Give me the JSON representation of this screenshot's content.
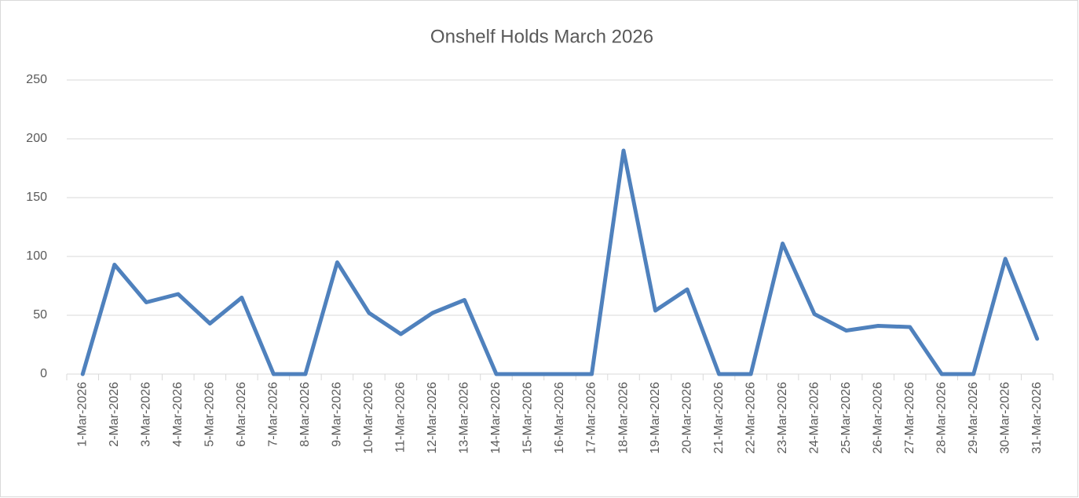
{
  "chart_data": {
    "type": "line",
    "title": "Onshelf Holds March 2026",
    "categories": [
      "1-Mar-2026",
      "2-Mar-2026",
      "3-Mar-2026",
      "4-Mar-2026",
      "5-Mar-2026",
      "6-Mar-2026",
      "7-Mar-2026",
      "8-Mar-2026",
      "9-Mar-2026",
      "10-Mar-2026",
      "11-Mar-2026",
      "12-Mar-2026",
      "13-Mar-2026",
      "14-Mar-2026",
      "15-Mar-2026",
      "16-Mar-2026",
      "17-Mar-2026",
      "18-Mar-2026",
      "19-Mar-2026",
      "20-Mar-2026",
      "21-Mar-2026",
      "22-Mar-2026",
      "23-Mar-2026",
      "24-Mar-2026",
      "25-Mar-2026",
      "26-Mar-2026",
      "27-Mar-2026",
      "28-Mar-2026",
      "29-Mar-2026",
      "30-Mar-2026",
      "31-Mar-2026"
    ],
    "values": [
      0,
      93,
      61,
      68,
      43,
      65,
      0,
      0,
      95,
      52,
      34,
      52,
      63,
      0,
      0,
      0,
      0,
      190,
      54,
      72,
      0,
      0,
      111,
      51,
      37,
      41,
      40,
      0,
      0,
      98,
      30
    ],
    "color": "#4f81bd",
    "ylim": [
      0,
      250
    ],
    "yticks": [
      0,
      50,
      100,
      150,
      200,
      250
    ],
    "grid": true
  }
}
